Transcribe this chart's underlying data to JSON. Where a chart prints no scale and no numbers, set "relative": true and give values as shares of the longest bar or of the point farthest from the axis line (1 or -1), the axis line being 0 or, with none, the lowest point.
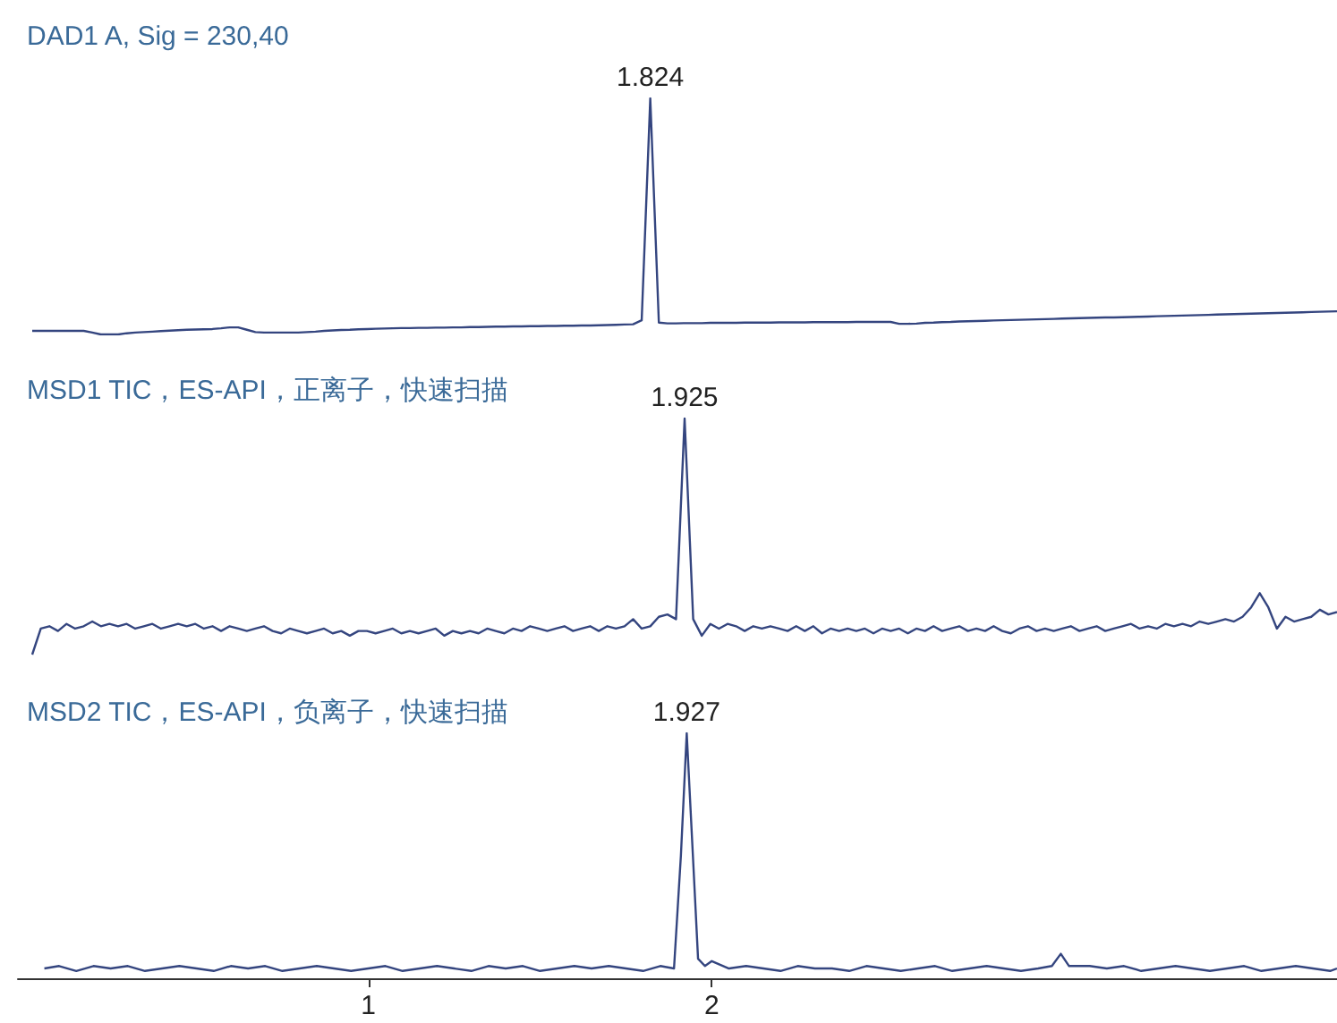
{
  "chart_data": [
    {
      "type": "line",
      "title": "DAD1 A, Sig = 230,40",
      "relative": true,
      "tick_labels": false,
      "marker": "none",
      "line_style": "solid",
      "annotations": [
        "1.824"
      ],
      "categories": [
        null,
        null,
        null,
        null,
        null,
        null,
        null,
        null,
        null,
        null,
        null,
        null,
        null,
        null,
        null,
        null,
        null,
        null,
        null,
        null,
        null,
        null,
        null,
        null,
        null,
        null,
        null,
        null,
        null,
        null,
        null,
        null,
        null,
        null,
        null,
        null,
        null,
        null,
        null,
        null,
        null,
        null,
        null,
        null,
        null,
        null,
        null,
        null,
        null,
        null,
        null,
        null,
        null,
        null,
        null,
        null,
        null,
        null,
        null,
        null,
        null,
        null,
        null,
        null,
        null,
        null,
        null,
        null,
        null,
        null,
        null,
        null,
        null,
        null,
        null,
        null,
        null,
        null,
        null,
        null,
        null,
        null,
        null,
        null,
        null,
        null,
        null,
        null,
        null,
        null,
        null,
        null,
        null,
        null,
        null,
        null,
        null,
        null,
        null,
        null,
        null,
        null,
        null,
        null,
        null,
        null,
        null,
        null,
        null,
        null,
        null,
        null,
        null,
        null,
        null,
        null,
        null,
        null,
        null,
        null,
        null,
        null,
        null,
        null,
        null,
        null,
        null,
        null,
        null,
        null,
        null,
        null,
        null,
        null,
        null,
        null,
        null,
        null,
        null,
        null,
        null,
        null,
        null,
        null,
        null,
        null,
        null,
        null,
        null,
        null,
        null,
        null,
        null
      ],
      "series": [
        {
          "color": "#34457f",
          "values": [
            0.015,
            0.015,
            0.015,
            0.015,
            0.015,
            0.015,
            0.015,
            0.008,
            0,
            0,
            0,
            0.005,
            0.008,
            0.01,
            0.012,
            0.014,
            0.016,
            0.018,
            0.02,
            0.021,
            0.022,
            0.023,
            0.026,
            0.03,
            0.03,
            0.02,
            0.01,
            0.008,
            0.008,
            0.008,
            0.008,
            0.008,
            0.01,
            0.012,
            0.015,
            0.017,
            0.019,
            0.02,
            0.022,
            0.023,
            0.024,
            0.025,
            0.026,
            0.027,
            0.027,
            0.028,
            0.028,
            0.029,
            0.029,
            0.03,
            0.03,
            0.031,
            0.031,
            0.032,
            0.033,
            0.033,
            0.034,
            0.034,
            0.035,
            0.035,
            0.036,
            0.036,
            0.037,
            0.037,
            0.038,
            0.038,
            0.039,
            0.04,
            0.041,
            0.042,
            0.043,
            0.06,
            1,
            0.05,
            0.047,
            0.047,
            0.048,
            0.048,
            0.048,
            0.049,
            0.049,
            0.049,
            0.049,
            0.05,
            0.05,
            0.05,
            0.05,
            0.051,
            0.051,
            0.051,
            0.051,
            0.052,
            0.052,
            0.052,
            0.052,
            0.052,
            0.053,
            0.053,
            0.053,
            0.053,
            0.053,
            0.045,
            0.045,
            0.046,
            0.049,
            0.05,
            0.052,
            0.053,
            0.055,
            0.056,
            0.057,
            0.058,
            0.059,
            0.06,
            0.061,
            0.062,
            0.063,
            0.064,
            0.065,
            0.066,
            0.067,
            0.068,
            0.069,
            0.07,
            0.071,
            0.072,
            0.072,
            0.073,
            0.074,
            0.075,
            0.076,
            0.077,
            0.078,
            0.079,
            0.08,
            0.081,
            0.082,
            0.083,
            0.084,
            0.085,
            0.086,
            0.087,
            0.088,
            0.089,
            0.09,
            0.091,
            0.092,
            0.093,
            0.094,
            0.095,
            0.096,
            0.097,
            0.098
          ]
        }
      ]
    },
    {
      "type": "line",
      "title": "MSD1 TIC，ES-API，正离子，快速扫描",
      "relative": true,
      "tick_labels": false,
      "marker": "none",
      "line_style": "solid",
      "annotations": [
        "1.925"
      ],
      "categories": [
        null,
        null,
        null,
        null,
        null,
        null,
        null,
        null,
        null,
        null,
        null,
        null,
        null,
        null,
        null,
        null,
        null,
        null,
        null,
        null,
        null,
        null,
        null,
        null,
        null,
        null,
        null,
        null,
        null,
        null,
        null,
        null,
        null,
        null,
        null,
        null,
        null,
        null,
        null,
        null,
        null,
        null,
        null,
        null,
        null,
        null,
        null,
        null,
        null,
        null,
        null,
        null,
        null,
        null,
        null,
        null,
        null,
        null,
        null,
        null,
        null,
        null,
        null,
        null,
        null,
        null,
        null,
        null,
        null,
        null,
        null,
        null,
        null,
        null,
        null,
        null,
        null,
        null,
        null,
        null,
        null,
        null,
        null,
        null,
        null,
        null,
        null,
        null,
        null,
        null,
        null,
        null,
        null,
        null,
        null,
        null,
        null,
        null,
        null,
        null,
        null,
        null,
        null,
        null,
        null,
        null,
        null,
        null,
        null,
        null,
        null,
        null,
        null,
        null,
        null,
        null,
        null,
        null,
        null,
        null,
        null,
        null,
        null,
        null,
        null,
        null,
        null,
        null,
        null,
        null,
        null,
        null,
        null,
        null,
        null,
        null,
        null,
        null,
        null,
        null,
        null,
        null,
        null,
        null,
        null,
        null,
        null,
        null,
        null,
        null,
        null,
        null,
        null
      ],
      "series": [
        {
          "color": "#34457f",
          "values": [
            0,
            0.11,
            0.12,
            0.1,
            0.13,
            0.11,
            0.12,
            0.14,
            0.12,
            0.13,
            0.12,
            0.13,
            0.11,
            0.12,
            0.13,
            0.11,
            0.12,
            0.13,
            0.12,
            0.13,
            0.11,
            0.12,
            0.1,
            0.12,
            0.11,
            0.1,
            0.11,
            0.12,
            0.1,
            0.09,
            0.11,
            0.1,
            0.09,
            0.1,
            0.11,
            0.09,
            0.1,
            0.08,
            0.1,
            0.1,
            0.09,
            0.1,
            0.11,
            0.09,
            0.1,
            0.09,
            0.1,
            0.11,
            0.08,
            0.1,
            0.09,
            0.1,
            0.09,
            0.11,
            0.1,
            0.09,
            0.11,
            0.1,
            0.12,
            0.11,
            0.1,
            0.11,
            0.12,
            0.1,
            0.11,
            0.12,
            0.1,
            0.12,
            0.11,
            0.12,
            0.15,
            0.11,
            0.12,
            0.16,
            0.17,
            0.15,
            1,
            0.15,
            0.08,
            0.13,
            0.11,
            0.13,
            0.12,
            0.1,
            0.12,
            0.11,
            0.12,
            0.11,
            0.1,
            0.12,
            0.1,
            0.12,
            0.09,
            0.11,
            0.1,
            0.11,
            0.1,
            0.11,
            0.09,
            0.11,
            0.1,
            0.11,
            0.09,
            0.11,
            0.1,
            0.12,
            0.1,
            0.11,
            0.12,
            0.1,
            0.11,
            0.1,
            0.12,
            0.1,
            0.09,
            0.11,
            0.12,
            0.1,
            0.11,
            0.1,
            0.11,
            0.12,
            0.1,
            0.11,
            0.12,
            0.1,
            0.11,
            0.12,
            0.13,
            0.11,
            0.12,
            0.11,
            0.13,
            0.12,
            0.13,
            0.12,
            0.14,
            0.13,
            0.14,
            0.15,
            0.14,
            0.16,
            0.2,
            0.26,
            0.2,
            0.11,
            0.16,
            0.14,
            0.15,
            0.16,
            0.19,
            0.17,
            0.18
          ]
        }
      ]
    },
    {
      "type": "line",
      "title": "MSD2 TIC，ES-API，负离子，快速扫描",
      "relative": true,
      "tick_labels": "x",
      "xlim": [
        -0.02,
        3.82
      ],
      "xticks": [
        1,
        2
      ],
      "marker": "none",
      "line_style": "solid",
      "annotations": [
        {
          "text": "1.927",
          "x": 1.927,
          "y": 1
        }
      ],
      "series": [
        {
          "color": "#34457f",
          "x": [
            0.057,
            0.1,
            0.15,
            0.2,
            0.25,
            0.3,
            0.35,
            0.4,
            0.45,
            0.5,
            0.55,
            0.6,
            0.65,
            0.7,
            0.75,
            0.8,
            0.85,
            0.9,
            0.95,
            1.0,
            1.05,
            1.1,
            1.15,
            1.2,
            1.25,
            1.3,
            1.35,
            1.4,
            1.45,
            1.5,
            1.55,
            1.6,
            1.65,
            1.7,
            1.75,
            1.8,
            1.85,
            1.89,
            1.91,
            1.927,
            1.945,
            1.96,
            1.98,
            2.0,
            2.05,
            2.1,
            2.15,
            2.2,
            2.25,
            2.3,
            2.35,
            2.4,
            2.45,
            2.5,
            2.55,
            2.6,
            2.65,
            2.7,
            2.75,
            2.8,
            2.85,
            2.9,
            2.95,
            2.99,
            3.016,
            3.04,
            3.1,
            3.15,
            3.2,
            3.25,
            3.3,
            3.35,
            3.4,
            3.45,
            3.5,
            3.55,
            3.6,
            3.65,
            3.7,
            3.75,
            3.8,
            3.82
          ],
          "values": [
            0.04,
            0.05,
            0.03,
            0.05,
            0.04,
            0.05,
            0.03,
            0.04,
            0.05,
            0.04,
            0.03,
            0.05,
            0.04,
            0.05,
            0.03,
            0.04,
            0.05,
            0.04,
            0.03,
            0.04,
            0.05,
            0.03,
            0.04,
            0.05,
            0.04,
            0.03,
            0.05,
            0.04,
            0.05,
            0.03,
            0.04,
            0.05,
            0.04,
            0.05,
            0.04,
            0.03,
            0.05,
            0.04,
            0.5,
            1,
            0.5,
            0.08,
            0.05,
            0.07,
            0.04,
            0.05,
            0.04,
            0.03,
            0.05,
            0.04,
            0.04,
            0.03,
            0.05,
            0.04,
            0.03,
            0.04,
            0.05,
            0.03,
            0.04,
            0.05,
            0.04,
            0.03,
            0.04,
            0.05,
            0.1,
            0.05,
            0.05,
            0.04,
            0.05,
            0.03,
            0.04,
            0.05,
            0.04,
            0.03,
            0.04,
            0.05,
            0.03,
            0.04,
            0.05,
            0.04,
            0.03,
            0.04
          ]
        }
      ]
    }
  ]
}
